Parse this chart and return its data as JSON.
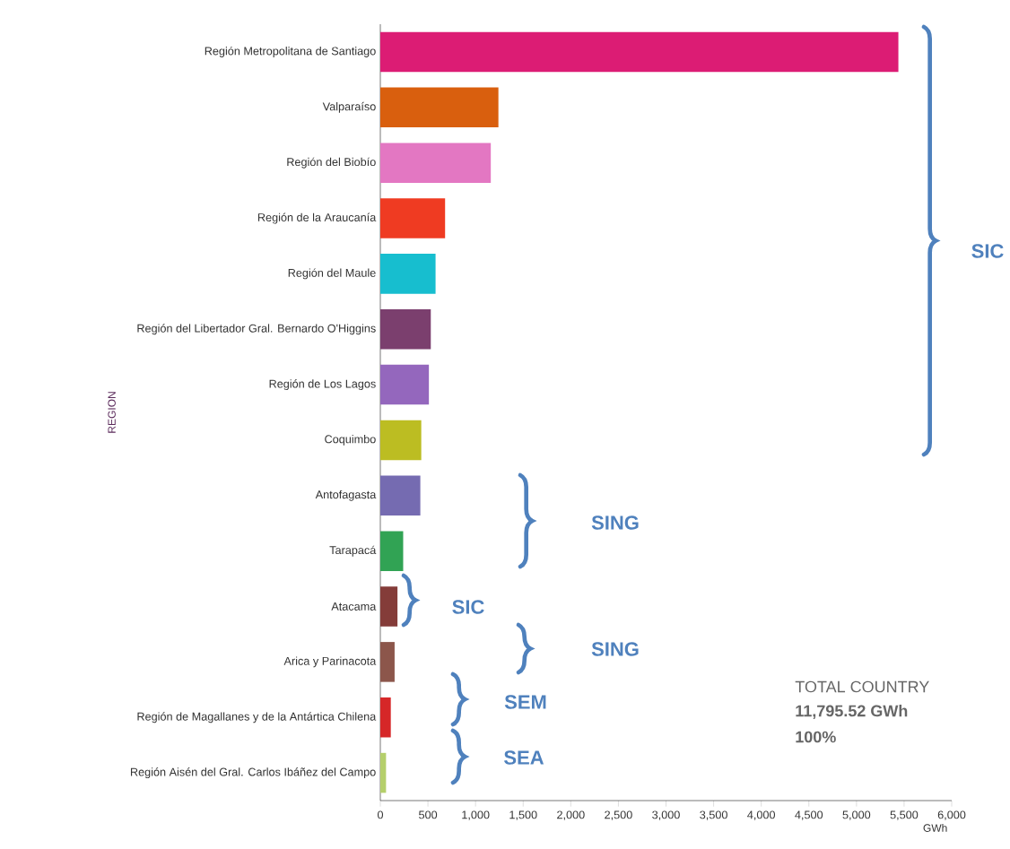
{
  "chart_data": {
    "type": "bar",
    "orientation": "horizontal",
    "ylabel": "REGION",
    "xlabel": "GWh",
    "categories": [
      "Región Metropolitana de Santiago",
      "Valparaíso",
      "Región del Biobío",
      "Región de la Araucanía",
      "Región del Maule",
      "Región del Libertador Gral. Bernardo O'Higgins",
      "Región de Los Lagos",
      "Coquimbo",
      "Antofagasta",
      "Tarapacá",
      "Atacama",
      "Arica y Parinacota",
      "Región de Magallanes y de la Antártica Chilena",
      "Región Aisén del Gral. Carlos Ibáñez del Campo"
    ],
    "values": [
      5440,
      1240,
      1160,
      680,
      580,
      530,
      510,
      430,
      420,
      240,
      180,
      150,
      110,
      60
    ],
    "colors": [
      "#dc1c74",
      "#d95f0e",
      "#e377c2",
      "#ef3b22",
      "#17becf",
      "#7b3f6e",
      "#9467bd",
      "#bcbd22",
      "#756bb1",
      "#31a354",
      "#843c39",
      "#8c564b",
      "#d62728",
      "#b5cf6b"
    ],
    "xlim": [
      0,
      6000
    ],
    "xticks": [
      0,
      500,
      {
        "value": 1000,
        "label": "1,000"
      },
      {
        "value": 1500,
        "label": "1,500"
      },
      {
        "value": 2000,
        "label": "2,000"
      },
      {
        "value": 2500,
        "label": "2,500"
      },
      {
        "value": 3000,
        "label": "3,000"
      },
      {
        "value": 3500,
        "label": "3,500"
      },
      {
        "value": 4000,
        "label": "4,000"
      },
      {
        "value": 4500,
        "label": "4,500"
      },
      {
        "value": 5000,
        "label": "5,000"
      },
      {
        "value": 5500,
        "label": "5,500"
      },
      {
        "value": 6000,
        "label": "6,000"
      }
    ],
    "annotations": [
      "SIC",
      "SING",
      "SIC",
      "SING",
      "SEM",
      "SEA",
      "TOTAL COUNTRY",
      "11,795.52 GWh",
      "100%"
    ]
  }
}
